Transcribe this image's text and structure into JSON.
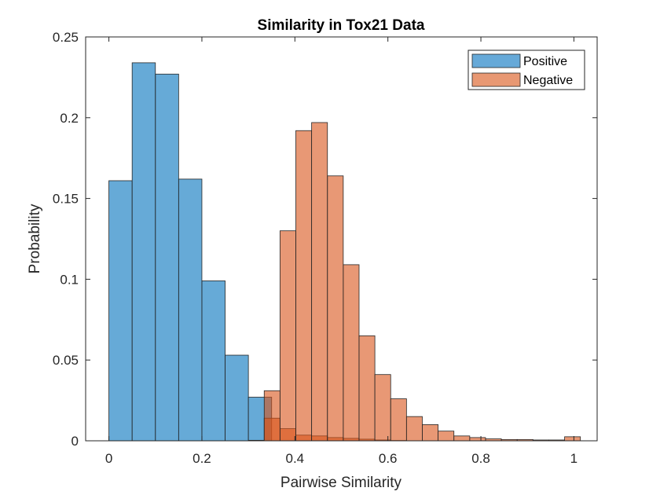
{
  "chart_data": {
    "type": "bar",
    "title": "Similarity in Tox21 Data",
    "xlabel": "Pairwise Similarity",
    "ylabel": "Probability",
    "xlim": [
      -0.05,
      1.05
    ],
    "ylim": [
      0,
      0.25
    ],
    "xticks": [
      0,
      0.2,
      0.4,
      0.6,
      0.8,
      1
    ],
    "yticks": [
      0,
      0.05,
      0.1,
      0.15,
      0.2,
      0.25
    ],
    "xtick_labels": [
      "0",
      "0.2",
      "0.4",
      "0.6",
      "0.8",
      "1"
    ],
    "ytick_labels": [
      "0",
      "0.05",
      "0.1",
      "0.15",
      "0.2",
      "0.25"
    ],
    "grid": false,
    "legend_position": "top-right",
    "series": [
      {
        "name": "Positive",
        "color": "#0072BD",
        "bin_width": 0.05,
        "bin_edges": [
          0,
          0.05,
          0.1,
          0.15,
          0.2,
          0.25,
          0.3,
          0.35
        ],
        "values": [
          0.161,
          0.234,
          0.227,
          0.162,
          0.099,
          0.053,
          0.027
        ]
      },
      {
        "name": "Negative",
        "color": "#D95319",
        "bin_width": 0.034,
        "bin_edges": [
          0.3,
          0.334,
          0.368,
          0.402,
          0.436,
          0.47,
          0.504,
          0.538,
          0.572,
          0.606,
          0.64,
          0.674,
          0.708,
          0.742,
          0.776,
          0.81,
          0.844,
          0.878,
          0.912,
          0.946,
          0.98,
          1.014
        ],
        "values": [
          0.0003,
          0.014,
          0.0075,
          0.0035,
          0.003,
          0.002,
          0.0015,
          0.001,
          0.0005,
          0.0002,
          0,
          0,
          0,
          0,
          0,
          0,
          0,
          0,
          0,
          0,
          0
        ]
      },
      {
        "name": "Negative",
        "color": "#D95319",
        "bin_width": 0.034,
        "bin_edges": [
          0.334,
          0.368,
          0.402,
          0.436,
          0.47,
          0.504,
          0.538,
          0.572,
          0.606,
          0.64,
          0.674,
          0.708,
          0.742,
          0.776,
          0.81,
          0.844,
          0.878,
          0.912,
          0.946,
          0.98,
          1.014
        ],
        "values": [
          0.031,
          0.13,
          0.192,
          0.197,
          0.164,
          0.109,
          0.065,
          0.041,
          0.026,
          0.015,
          0.01,
          0.006,
          0.003,
          0.002,
          0.0012,
          0.0008,
          0.0008,
          0.0005,
          0.0005,
          0.0025
        ]
      }
    ]
  }
}
